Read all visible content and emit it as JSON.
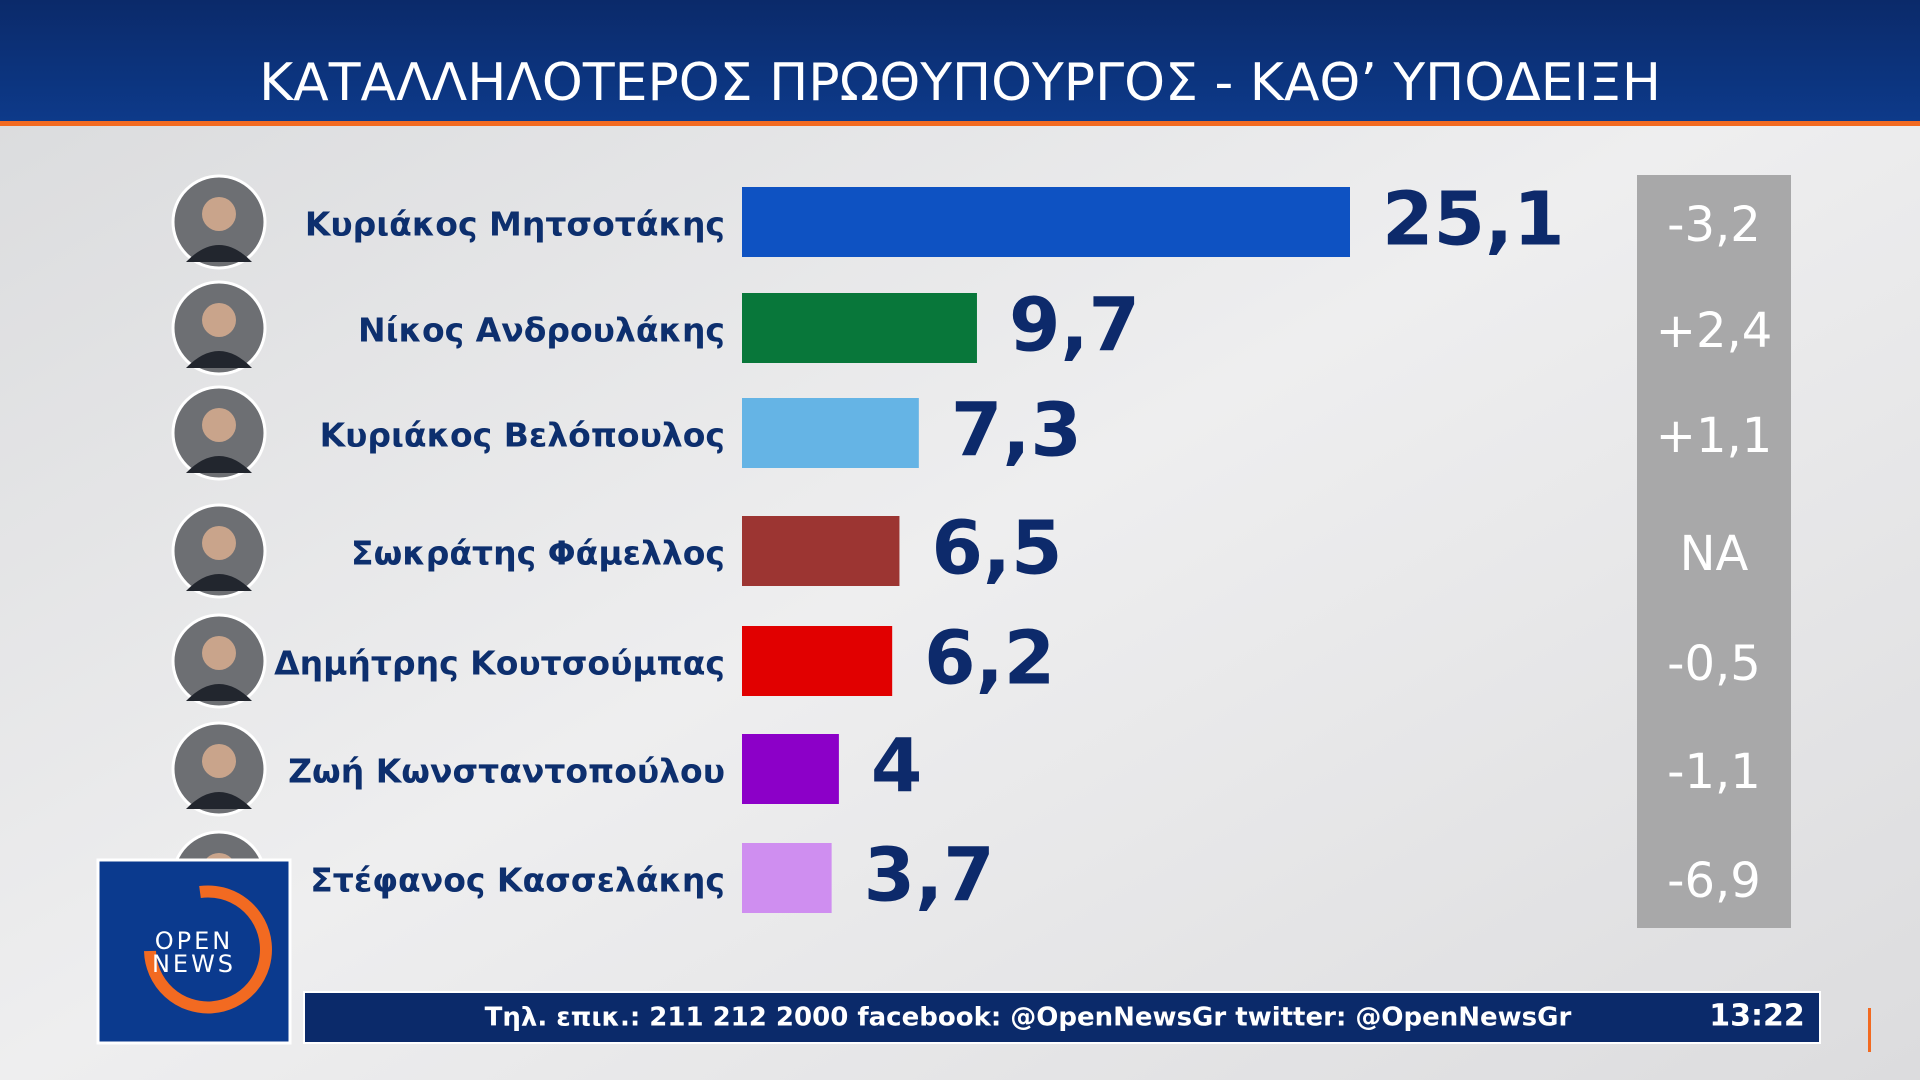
{
  "chart_data": {
    "type": "bar",
    "title": "ΚΑΤΑΛΛΗΛΟΤΕΡΟΣ ΠΡΩΘΥΠΟΥΡΓΟΣ - ΚΑΘ’ ΥΠΟΔΕΙΞΗ",
    "categories": [
      "Κυριάκος Μητσοτάκης",
      "Νίκος Ανδρουλάκης",
      "Κυριάκος Βελόπουλος",
      "Σωκράτης Φάμελλος",
      "Δημήτρης Κουτσούμπας",
      "Ζωή Κωνσταντοπούλου",
      "Στέφανος Κασσελάκης"
    ],
    "values": [
      25.1,
      9.7,
      7.3,
      6.5,
      6.2,
      4,
      3.7
    ],
    "value_labels": [
      "25,1",
      "9,7",
      "7,3",
      "6,5",
      "6,2",
      "4",
      "3,7"
    ],
    "colors": [
      "#0e52c2",
      "#08773a",
      "#65b4e5",
      "#9c3532",
      "#e10000",
      "#8c00c8",
      "#cf8ef0"
    ],
    "change_labels": [
      "-3,2",
      "+2,4",
      "+1,1",
      "ΝΑ",
      "-0,5",
      "-1,1",
      "-6,9"
    ]
  },
  "ticker": "Τηλ. επικ.: 211 212 2000 facebook: @OpenNewsGr twitter: @OpenNewsGr",
  "clock": "13:22",
  "logo": {
    "line1": "OPEN",
    "line2": "NEWS"
  }
}
